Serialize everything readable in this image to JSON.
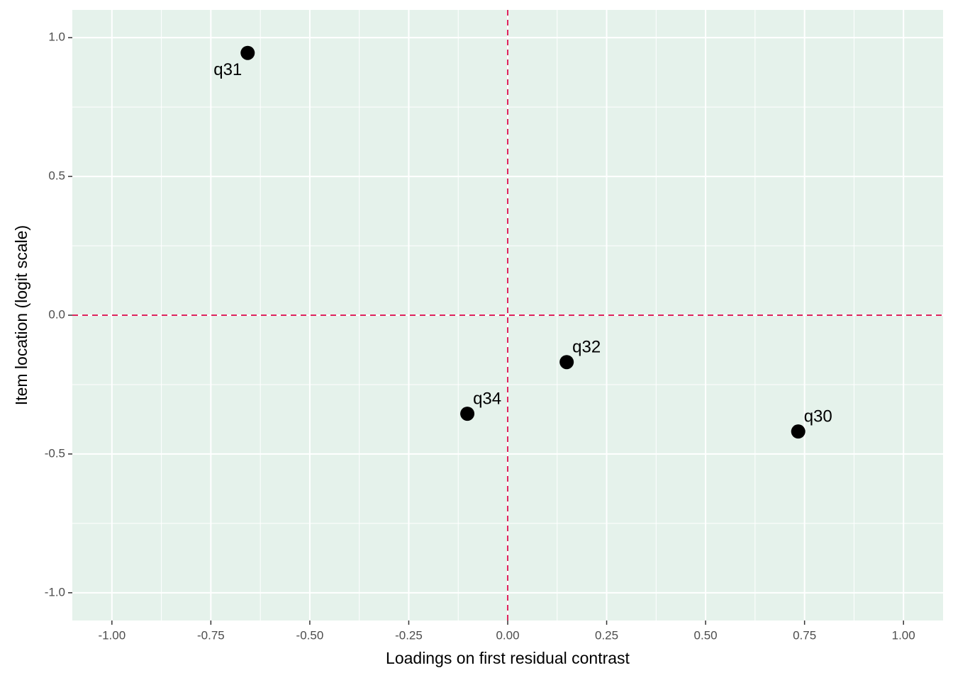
{
  "chart_data": {
    "type": "scatter",
    "x_label": "Loadings on first residual contrast",
    "y_label": "Item location (logit scale)",
    "labels": [
      "q31",
      "q34",
      "q32",
      "q30"
    ],
    "x": [
      -0.657,
      -0.102,
      0.149,
      0.734
    ],
    "values": [
      0.945,
      -0.355,
      -0.169,
      -0.419
    ],
    "color": "#000000",
    "panel_color": "#e5f2eb",
    "grid": true,
    "reference_lines": {
      "x": 0,
      "y": 0,
      "color": "#e0245e"
    },
    "xlim": [
      -1.1,
      1.1
    ],
    "ylim": [
      -1.1,
      1.1
    ],
    "xticks": [
      {
        "value": -1,
        "label": "-1.00"
      },
      {
        "value": -0.75,
        "label": "-0.75"
      },
      {
        "value": -0.5,
        "label": "-0.50"
      },
      {
        "value": -0.25,
        "label": "-0.25"
      },
      {
        "value": 0,
        "label": "0.00"
      },
      {
        "value": 0.25,
        "label": "0.25"
      },
      {
        "value": 0.5,
        "label": "0.50"
      },
      {
        "value": 0.75,
        "label": "0.75"
      },
      {
        "value": 1,
        "label": "1.00"
      }
    ],
    "yticks": [
      {
        "value": -1,
        "label": "-1.0"
      },
      -0.5,
      {
        "value": 0,
        "label": "0.0"
      },
      0.5,
      {
        "value": 1,
        "label": "1.0"
      }
    ]
  }
}
